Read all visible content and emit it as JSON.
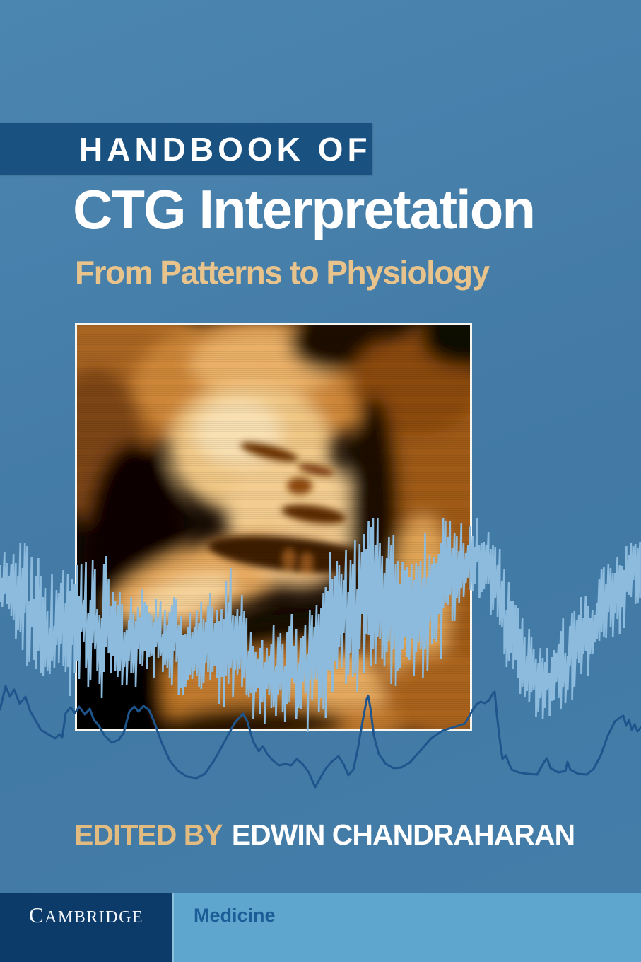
{
  "cover": {
    "series_label": "HANDBOOK OF",
    "title": "CTG Interpretation",
    "subtitle": "From Patterns to Physiology",
    "edited_by_label": "EDITED BY",
    "editor_name": "EDWIN CHANDRAHARAN",
    "publisher": "CAMBRIDGE",
    "imprint": "Medicine"
  },
  "artwork": {
    "photo_alt": "3d-ultrasound-of-fetus",
    "overlay_alt": "ctg-fetal-heart-rate-and-contraction-traces"
  },
  "colors": {
    "background": "#437da9",
    "banner": "#195181",
    "title_text": "#ffffff",
    "subtitle_text": "#e8c48c",
    "editedby_text": "#e2bb80",
    "publisher_bar": "#0c3b69",
    "imprint_bar": "#5fa6ce",
    "imprint_text": "#1b5e97",
    "fhr_trace": "#8cbbdd",
    "toco_trace": "#1e558c"
  }
}
